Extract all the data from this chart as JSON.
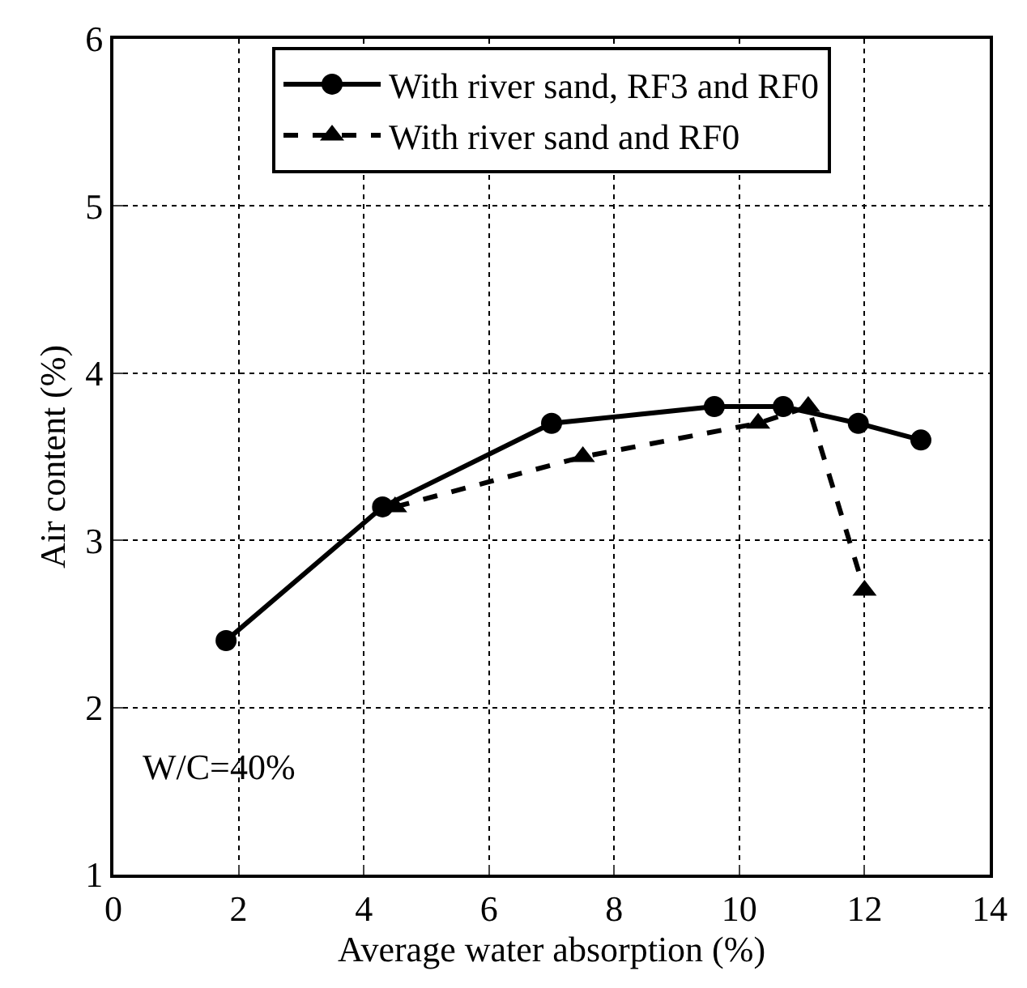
{
  "chart_data": {
    "type": "line",
    "xlabel": "Average water absorption (%)",
    "ylabel": "Air content (%)",
    "xlim": [
      0,
      14
    ],
    "xticks": [
      0,
      2,
      4,
      6,
      8,
      10,
      12,
      14
    ],
    "ylim": [
      1,
      6
    ],
    "yticks": [
      1,
      2,
      3,
      4,
      5,
      6
    ],
    "grid": true,
    "legend": "top",
    "annotations": [
      "W/C=40%"
    ],
    "series": [
      {
        "name": "With river sand, RF3 and RF0",
        "color": "#000000",
        "marker": "circle",
        "line_style": "solid",
        "x": [
          1.8,
          4.3,
          7.0,
          9.6,
          10.7,
          11.9,
          12.9
        ],
        "values": [
          2.4,
          3.2,
          3.7,
          3.8,
          3.8,
          3.7,
          3.6
        ]
      },
      {
        "name": "With river sand and RF0",
        "color": "#000000",
        "marker": "triangle",
        "line_style": "dashed",
        "x": [
          4.5,
          7.5,
          10.3,
          11.1,
          12.0
        ],
        "values": [
          3.2,
          3.5,
          3.7,
          3.8,
          2.7
        ]
      }
    ]
  }
}
